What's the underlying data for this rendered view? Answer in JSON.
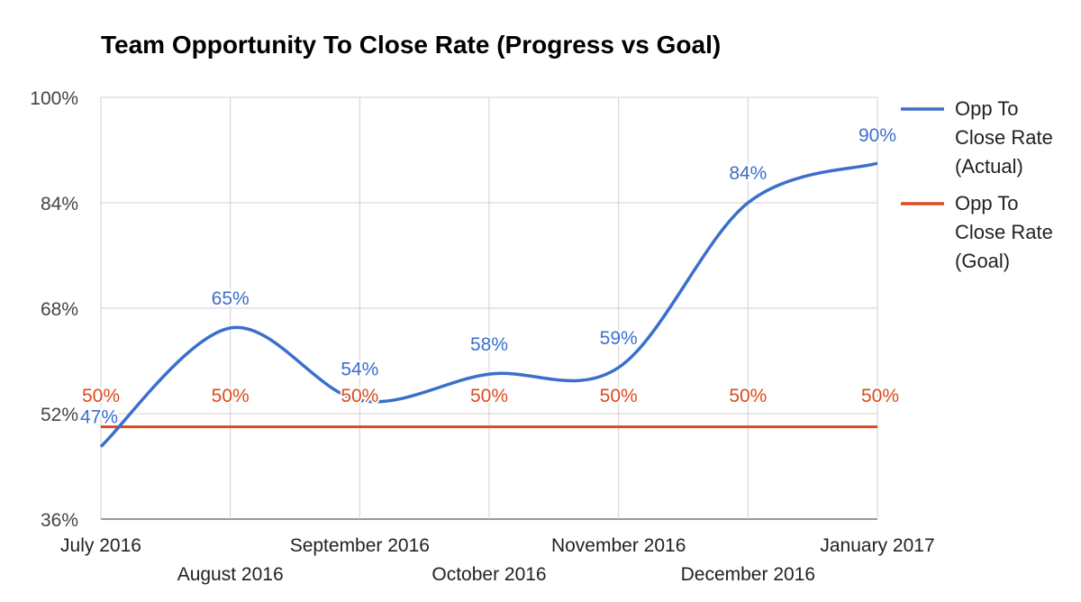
{
  "chart_data": {
    "type": "line",
    "title": "Team Opportunity To Close Rate (Progress vs Goal)",
    "categories": [
      "July 2016",
      "August 2016",
      "September 2016",
      "October 2016",
      "November 2016",
      "December 2016",
      "January 2017"
    ],
    "series": [
      {
        "name": "Opp To Close Rate (Actual)",
        "legend_lines": [
          "Opp To",
          "Close Rate",
          "(Actual)"
        ],
        "values": [
          47,
          65,
          54,
          58,
          59,
          84,
          90
        ],
        "labels": [
          "47%",
          "65%",
          "54%",
          "58%",
          "59%",
          "84%",
          "90%"
        ],
        "color": "#3b6fcc"
      },
      {
        "name": "Opp To Close Rate (Goal)",
        "legend_lines": [
          "Opp To",
          "Close Rate",
          "(Goal)"
        ],
        "values": [
          50,
          50,
          50,
          50,
          50,
          50,
          50
        ],
        "labels": [
          "50%",
          "50%",
          "50%",
          "50%",
          "50%",
          "50%",
          "50%"
        ],
        "color": "#dc4a1e"
      }
    ],
    "yticks": [
      "36%",
      "52%",
      "68%",
      "84%",
      "100%"
    ],
    "ylim": [
      36,
      100
    ],
    "xlabel": "",
    "ylabel": "",
    "grid": true,
    "legend": "right"
  }
}
